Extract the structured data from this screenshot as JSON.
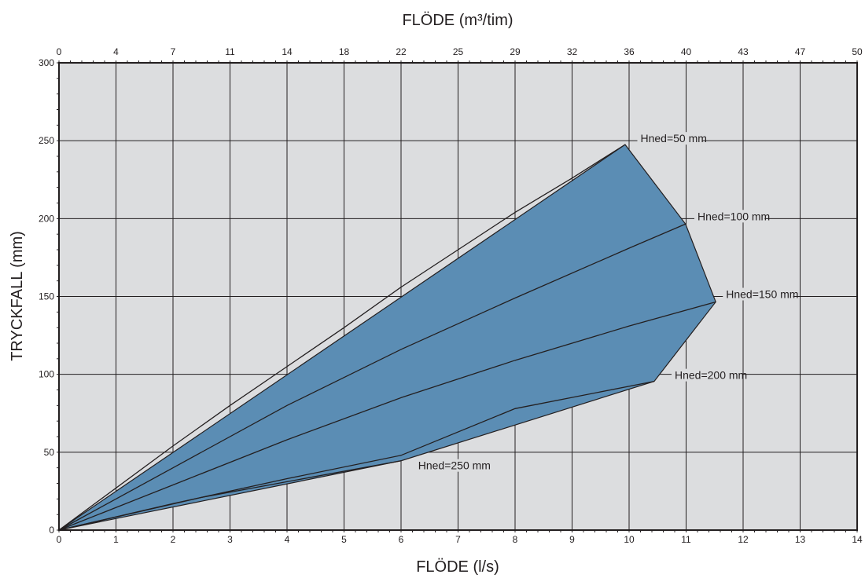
{
  "chart_data": {
    "type": "area",
    "title": "",
    "xlabel": "FLÖDE (l/s)",
    "ylabel": "TRYCKFALL (mm)",
    "x2label": "FLÖDE (m³/tim)",
    "xlim": [
      0,
      14
    ],
    "ylim": [
      0,
      300
    ],
    "grid": true,
    "x_ticks": [
      "0",
      "1",
      "2",
      "3",
      "4",
      "5",
      "6",
      "7",
      "8",
      "9",
      "10",
      "11",
      "12",
      "13",
      "14"
    ],
    "y_ticks": [
      "0",
      "50",
      "100",
      "150",
      "200",
      "250",
      "300"
    ],
    "x2_ticks": [
      "0",
      "4",
      "7",
      "11",
      "14",
      "18",
      "22",
      "25",
      "29",
      "32",
      "36",
      "40",
      "43",
      "47",
      "50"
    ],
    "region_polygon": [
      [
        0,
        0
      ],
      [
        9.93,
        247.5
      ],
      [
        10.99,
        196.5
      ],
      [
        11.52,
        146.5
      ],
      [
        10.44,
        95.5
      ],
      [
        6.0,
        44.5
      ],
      [
        0,
        0
      ]
    ],
    "series": [
      {
        "name": "Hned=50 mm",
        "label_at": [
          10.2,
          250
        ],
        "points": [
          [
            0,
            0
          ],
          [
            2,
            54
          ],
          [
            3,
            80
          ],
          [
            4,
            105
          ],
          [
            5,
            130
          ],
          [
            6,
            156
          ],
          [
            7,
            180
          ],
          [
            8,
            204
          ],
          [
            9,
            226
          ],
          [
            9.93,
            247.5
          ]
        ]
      },
      {
        "name": "Hned=100 mm",
        "label_at": [
          11.2,
          200
        ],
        "points": [
          [
            0,
            0
          ],
          [
            2,
            40
          ],
          [
            4,
            80
          ],
          [
            6,
            116
          ],
          [
            8,
            149
          ],
          [
            10,
            181
          ],
          [
            10.99,
            196.5
          ]
        ]
      },
      {
        "name": "Hned=150 mm",
        "label_at": [
          11.7,
          150
        ],
        "points": [
          [
            0,
            0
          ],
          [
            2,
            29
          ],
          [
            4,
            58
          ],
          [
            6,
            85
          ],
          [
            8,
            109
          ],
          [
            10,
            131
          ],
          [
            11.52,
            146.5
          ]
        ]
      },
      {
        "name": "Hned=200 mm",
        "label_at": [
          10.8,
          98
        ],
        "points": [
          [
            0,
            0
          ],
          [
            2,
            17
          ],
          [
            4,
            33
          ],
          [
            6,
            48
          ],
          [
            8,
            78
          ],
          [
            10.44,
            95.5
          ]
        ]
      },
      {
        "name": "Hned=250 mm",
        "label_at": [
          6.3,
          40
        ],
        "points": [
          [
            0,
            0
          ],
          [
            2.5,
            21
          ],
          [
            6,
            44.5
          ]
        ]
      }
    ],
    "colors": {
      "fill": "#5b8db4",
      "plot_bg": "#dcdddf",
      "line": "#231f20"
    }
  }
}
